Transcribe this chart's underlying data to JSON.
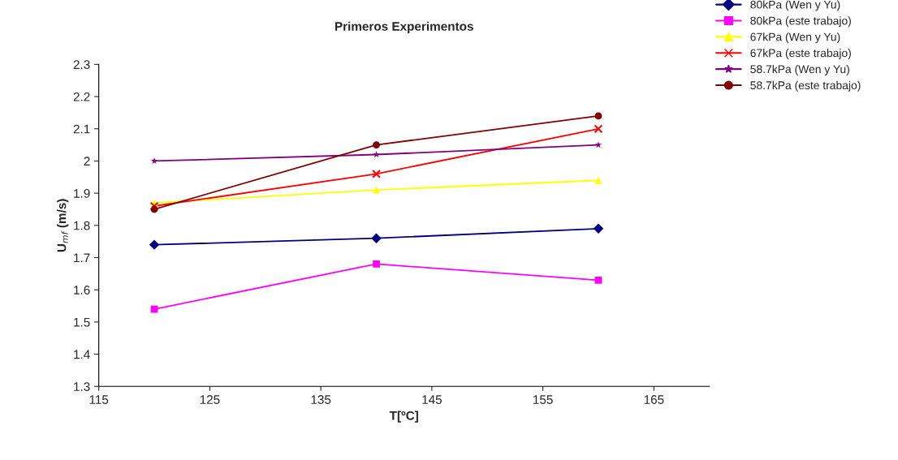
{
  "chart_data": {
    "type": "line",
    "title": "Primeros Experimentos",
    "xlabel": "T[ºC]",
    "ylabel": "U$_{mf}$ (m/s)",
    "x": [
      120,
      140,
      160
    ],
    "series": [
      {
        "name": "80kPa (Wen y Yu)",
        "color": "#000080",
        "marker": "diamond",
        "values": [
          1.74,
          1.76,
          1.79
        ]
      },
      {
        "name": "80kPa (este trabajo)",
        "color": "#ff00ff",
        "marker": "square",
        "values": [
          1.54,
          1.68,
          1.63
        ]
      },
      {
        "name": "67kPa (Wen y Yu)",
        "color": "#ffff00",
        "marker": "triangle",
        "values": [
          1.87,
          1.91,
          1.94
        ]
      },
      {
        "name": "67kPa (este trabajo)",
        "color": "#ff0000",
        "marker": "cross",
        "values": [
          1.86,
          1.96,
          2.1
        ]
      },
      {
        "name": "58.7kPa (Wen y Yu)",
        "color": "#800080",
        "marker": "star",
        "values": [
          2.0,
          2.02,
          2.05
        ]
      },
      {
        "name": "58.7kPa (este trabajo)",
        "color": "#800000",
        "marker": "circle",
        "values": [
          1.85,
          2.05,
          2.14
        ]
      }
    ],
    "xlim": [
      115,
      170
    ],
    "xticks": [
      115,
      125,
      135,
      145,
      155,
      165
    ],
    "ylim": [
      1.3,
      2.3
    ],
    "yticks": [
      {
        "value": 1.3,
        "label": "1.3"
      },
      {
        "value": 1.4,
        "label": "1.4"
      },
      {
        "value": 1.5,
        "label": "1.5"
      },
      {
        "value": 1.6,
        "label": "1.6"
      },
      {
        "value": 1.7,
        "label": "1.7"
      },
      {
        "value": 1.8,
        "label": "1.8"
      },
      {
        "value": 1.9,
        "label": "1.9"
      },
      {
        "value": 2.0,
        "label": "2"
      },
      {
        "value": 2.1,
        "label": "2.1"
      },
      {
        "value": 2.2,
        "label": "2.2"
      },
      {
        "value": 2.3,
        "label": "2.3"
      }
    ],
    "grid": false,
    "legend": "right"
  }
}
